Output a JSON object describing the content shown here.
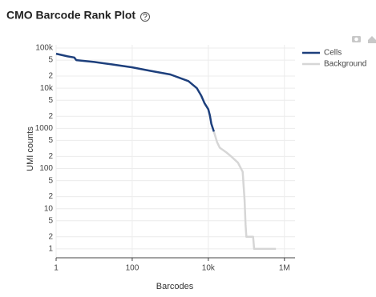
{
  "chart_data": {
    "type": "line",
    "title": "CMO Barcode Rank Plot",
    "x_label": "Barcodes",
    "y_label": "UMI counts",
    "log_x": true,
    "log_y": true,
    "grid": true,
    "xlim": [
      1,
      1900000
    ],
    "ylim": [
      0.6,
      120000
    ],
    "xticks": [
      1,
      100,
      {
        "value": 10000,
        "label": "10k"
      },
      {
        "value": 1000000,
        "label": "1M"
      }
    ],
    "yticks": [
      1,
      {
        "value": 2,
        "label": "2"
      },
      {
        "value": 5,
        "label": "5"
      },
      10,
      {
        "value": 20,
        "label": "2"
      },
      {
        "value": 50,
        "label": "5"
      },
      100,
      {
        "value": 200,
        "label": "2"
      },
      {
        "value": 500,
        "label": "5"
      },
      1000,
      {
        "value": 2000,
        "label": "2"
      },
      {
        "value": 5000,
        "label": "5"
      },
      {
        "value": 10000,
        "label": "10k"
      },
      {
        "value": 20000,
        "label": "2"
      },
      {
        "value": 50000,
        "label": "5"
      },
      {
        "value": 100000,
        "label": "100k"
      }
    ],
    "legend_position": "top-right",
    "series": [
      {
        "name": "Cells",
        "color": "#1d3f7c",
        "x": [
          1,
          2,
          3,
          3.4,
          10,
          30,
          100,
          300,
          1000,
          3000,
          5000,
          6500,
          8000,
          10000,
          11000,
          12000,
          14000
        ],
        "values": [
          72000,
          62000,
          58000,
          50000,
          45000,
          39000,
          33000,
          27000,
          22000,
          15000,
          10000,
          6500,
          4200,
          3000,
          2100,
          1300,
          830
        ]
      },
      {
        "name": "Background",
        "color": "#d6d6d6",
        "x": [
          14000,
          17000,
          20000,
          30000,
          40000,
          60000,
          80000,
          90000,
          95000,
          100000,
          150000,
          160000,
          600000
        ],
        "values": [
          830,
          450,
          330,
          250,
          200,
          140,
          83,
          16,
          4,
          2,
          2,
          1,
          1
        ]
      }
    ]
  }
}
